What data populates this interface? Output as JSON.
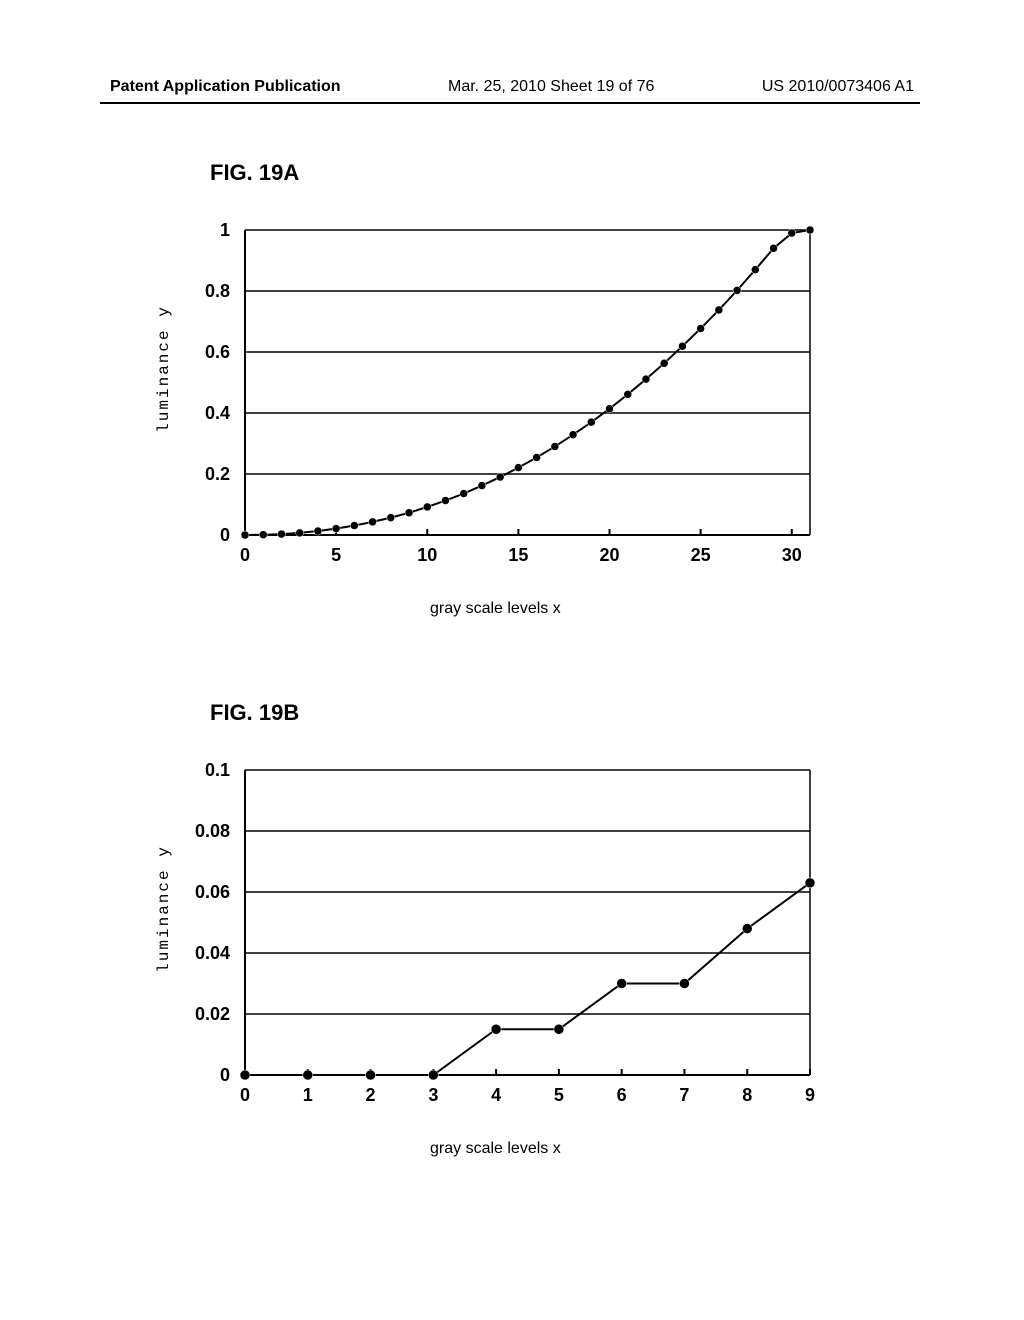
{
  "header": {
    "left": "Patent Application Publication",
    "mid": "Mar. 25, 2010  Sheet 19 of 76",
    "right": "US 2010/0073406 A1"
  },
  "figA": {
    "label": "FIG. 19A",
    "type": "line",
    "xlabel": "gray scale levels  x",
    "ylabel": "luminance  y",
    "xlim": [
      0,
      31
    ],
    "ylim": [
      0,
      1
    ],
    "xticks": [
      0,
      5,
      10,
      15,
      20,
      25,
      30
    ],
    "yticks": [
      0,
      0.2,
      0.4,
      0.6,
      0.8,
      1
    ],
    "ytick_labels": [
      "0",
      "0.2",
      "0.4",
      "0.6",
      "0.8",
      "1"
    ],
    "grid_color": "#000000",
    "background_color": "#ffffff",
    "line_color": "#000000",
    "line_width": 2,
    "marker_color": "#000000",
    "marker_size": 4,
    "marker_style": "circle",
    "axis_width": 2,
    "grid_width": 1.5,
    "label_fontsize": 16,
    "tick_fontsize": 18,
    "x": [
      0,
      1,
      2,
      3,
      4,
      5,
      6,
      7,
      8,
      9,
      10,
      11,
      12,
      13,
      14,
      15,
      16,
      17,
      18,
      19,
      20,
      21,
      22,
      23,
      24,
      25,
      26,
      27,
      28,
      29,
      30,
      31
    ],
    "y": [
      0,
      0.001,
      0.003,
      0.007,
      0.013,
      0.021,
      0.031,
      0.043,
      0.057,
      0.073,
      0.092,
      0.113,
      0.136,
      0.162,
      0.19,
      0.221,
      0.254,
      0.29,
      0.329,
      0.37,
      0.414,
      0.461,
      0.511,
      0.563,
      0.619,
      0.677,
      0.738,
      0.802,
      0.87,
      0.94,
      0.99,
      1.0
    ]
  },
  "figB": {
    "label": "FIG. 19B",
    "type": "line",
    "xlabel": "gray scale levels  x",
    "ylabel": "luminance  y",
    "xlim": [
      0,
      9
    ],
    "ylim": [
      0,
      0.1
    ],
    "xticks": [
      0,
      1,
      2,
      3,
      4,
      5,
      6,
      7,
      8,
      9
    ],
    "yticks": [
      0,
      0.02,
      0.04,
      0.06,
      0.08,
      0.1
    ],
    "ytick_labels": [
      "0",
      "0.02",
      "0.04",
      "0.06",
      "0.08",
      "0.1"
    ],
    "grid_color": "#000000",
    "background_color": "#ffffff",
    "line_color": "#000000",
    "line_width": 2,
    "marker_color": "#000000",
    "marker_size": 5,
    "marker_style": "circle",
    "axis_width": 2,
    "grid_width": 1.5,
    "label_fontsize": 16,
    "tick_fontsize": 18,
    "x": [
      0,
      1,
      2,
      3,
      4,
      5,
      6,
      7,
      8,
      9
    ],
    "y": [
      0,
      0,
      0,
      0,
      0.015,
      0.015,
      0.03,
      0.03,
      0.048,
      0.063
    ]
  }
}
